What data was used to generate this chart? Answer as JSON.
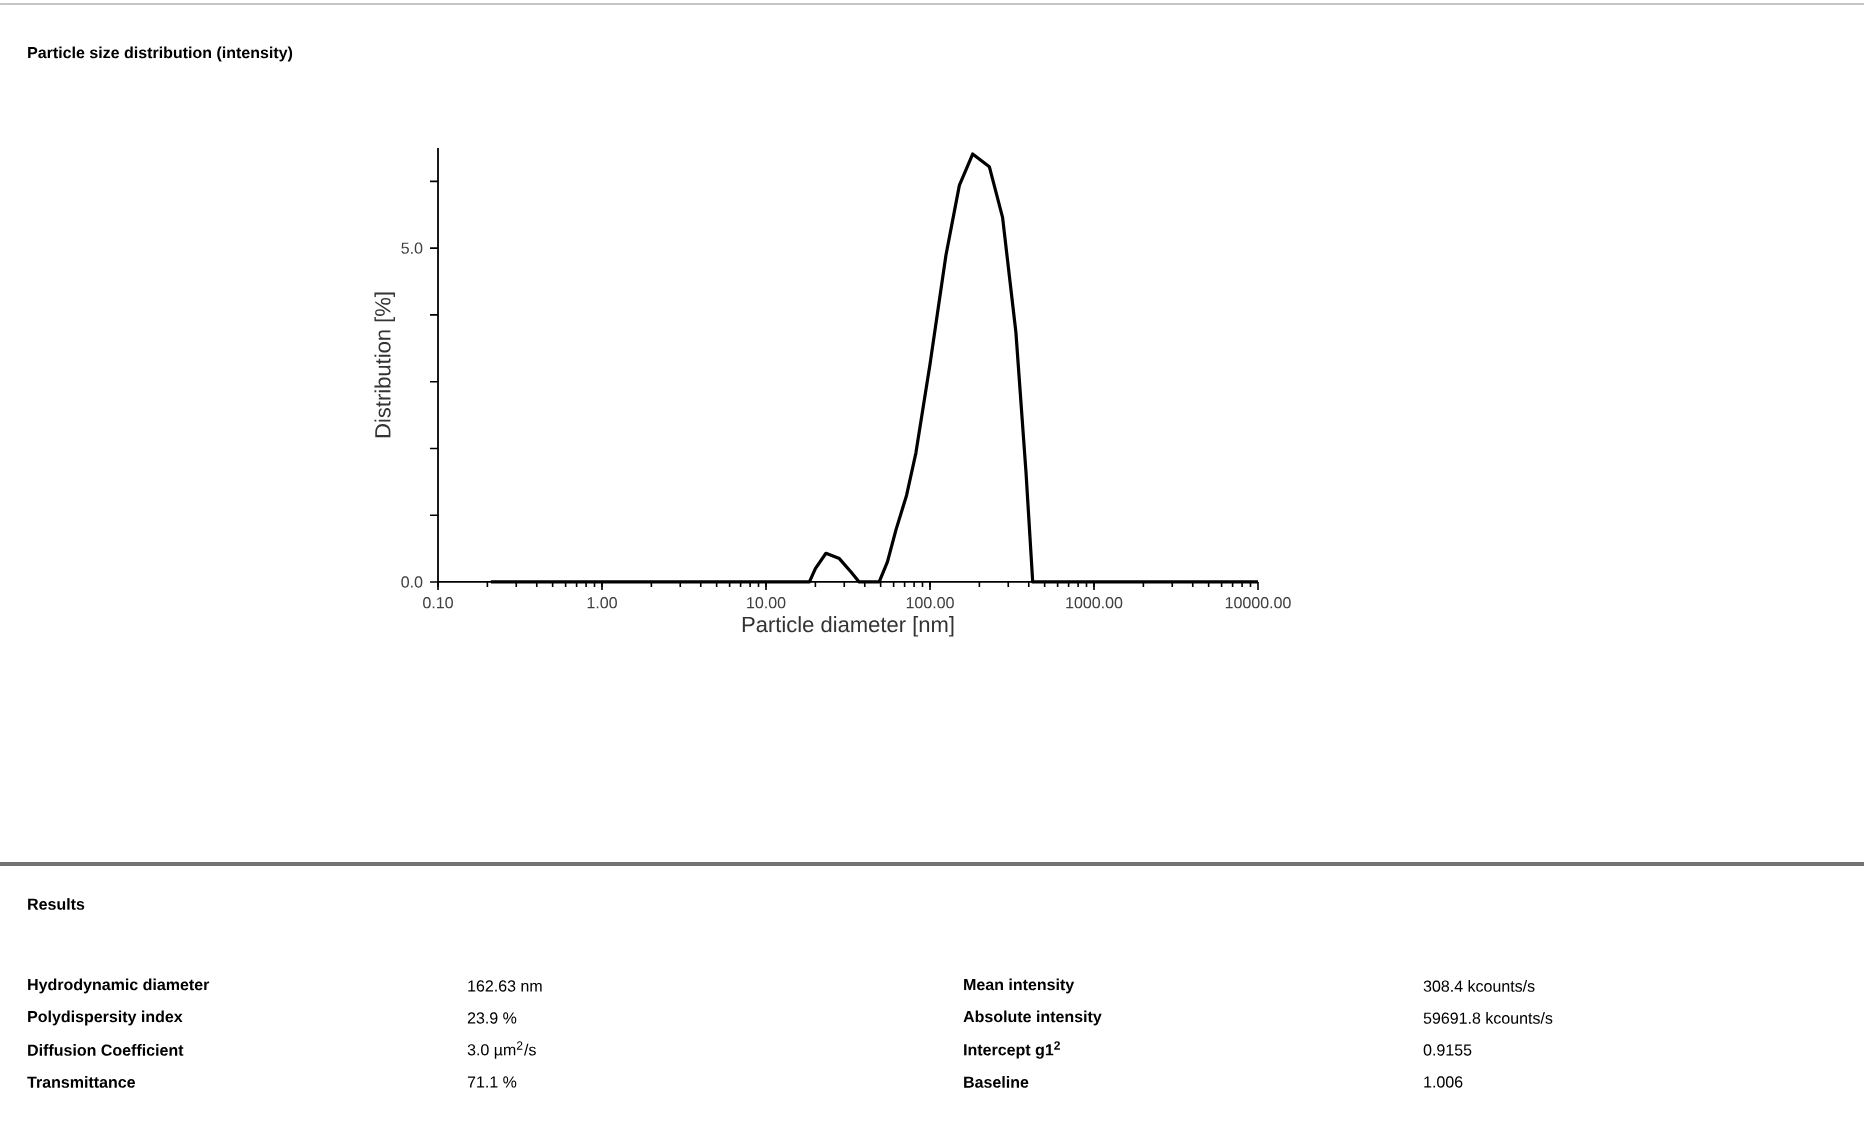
{
  "chart_data": {
    "type": "line",
    "title": "Particle size distribution (intensity)",
    "xlabel": "Particle diameter [nm]",
    "ylabel": "Distribution [%]",
    "log": "x",
    "grid": false,
    "marker": "none",
    "line_style": "solid",
    "xlim": [
      0.1,
      10000
    ],
    "xticks": [
      {
        "value": 0.1,
        "label": "0.10"
      },
      {
        "value": 1,
        "label": "1.00"
      },
      {
        "value": 10,
        "label": "10.00"
      },
      {
        "value": 100,
        "label": "100.00"
      },
      {
        "value": 1000,
        "label": "1000.00"
      },
      {
        "value": 10000,
        "label": "10000.00"
      }
    ],
    "ylim": [
      0,
      6.5
    ],
    "yticks": [
      {
        "value": 0,
        "label": "0.0"
      },
      {
        "value": 1,
        "label": null
      },
      {
        "value": 2,
        "label": null
      },
      {
        "value": 3,
        "label": null
      },
      {
        "value": 4,
        "label": null
      },
      {
        "value": 5,
        "label": "5.0"
      },
      {
        "value": 6,
        "label": null
      }
    ],
    "series": [
      {
        "color": "#000000",
        "x": [
          0.21,
          1,
          10,
          18.4,
          20,
          23.2,
          28,
          33,
          37,
          49,
          55,
          62,
          72,
          82,
          100,
          125,
          151,
          182,
          230,
          277,
          334,
          385,
          423,
          1000,
          10000
        ],
        "values": [
          0,
          0,
          0,
          0,
          0.2,
          0.43,
          0.35,
          0.15,
          0,
          0,
          0.3,
          0.78,
          1.3,
          1.93,
          3.26,
          4.89,
          5.94,
          6.41,
          6.22,
          5.46,
          3.74,
          1.64,
          0,
          0,
          0
        ]
      }
    ],
    "annotations": [
      "Results",
      "Hydrodynamic diameter",
      "162.63 nm",
      "Mean intensity",
      "308.4 kcounts/s",
      "Polydispersity index",
      "23.9 %",
      "Absolute intensity",
      "59691.8 kcounts/s",
      "Diffusion Coefficient",
      "3.0 µm$^{2}$/s",
      "Intercept g1$^{2}$",
      "0.9155",
      "Transmittance",
      "71.1 %",
      "Baseline",
      "1.006"
    ]
  }
}
